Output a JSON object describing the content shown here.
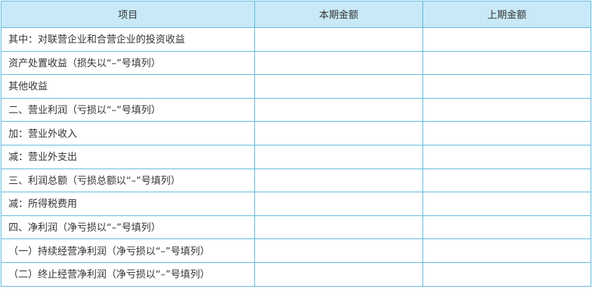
{
  "header": {
    "item": "项目",
    "current": "本期金额",
    "previous": "上期金额"
  },
  "rows": [
    {
      "label": "其中：对联营企业和合营企业的投资收益",
      "current": "",
      "previous": ""
    },
    {
      "label": "资产处置收益（损失以“–”号填列）",
      "current": "",
      "previous": ""
    },
    {
      "label": "其他收益",
      "current": "",
      "previous": ""
    },
    {
      "label": "二、营业利润（亏损以“–”号填列）",
      "current": "",
      "previous": ""
    },
    {
      "label": "加：营业外收入",
      "current": "",
      "previous": ""
    },
    {
      "label": "减：营业外支出",
      "current": "",
      "previous": ""
    },
    {
      "label": "三、利润总额（亏损总额以“–”号填列）",
      "current": "",
      "previous": ""
    },
    {
      "label": "减：所得税费用",
      "current": "",
      "previous": ""
    },
    {
      "label": "四、净利润（净亏损以“–”号填列）",
      "current": "",
      "previous": ""
    },
    {
      "label": "（一）持续经营净利润（净亏损以“–”号填列）",
      "current": "",
      "previous": ""
    },
    {
      "label": "（二）终止经营净利润（净亏损以“–”号填列）",
      "current": "",
      "previous": ""
    }
  ],
  "colors": {
    "header_bg": "#c8e9f8",
    "border": "#5bb8dc"
  }
}
